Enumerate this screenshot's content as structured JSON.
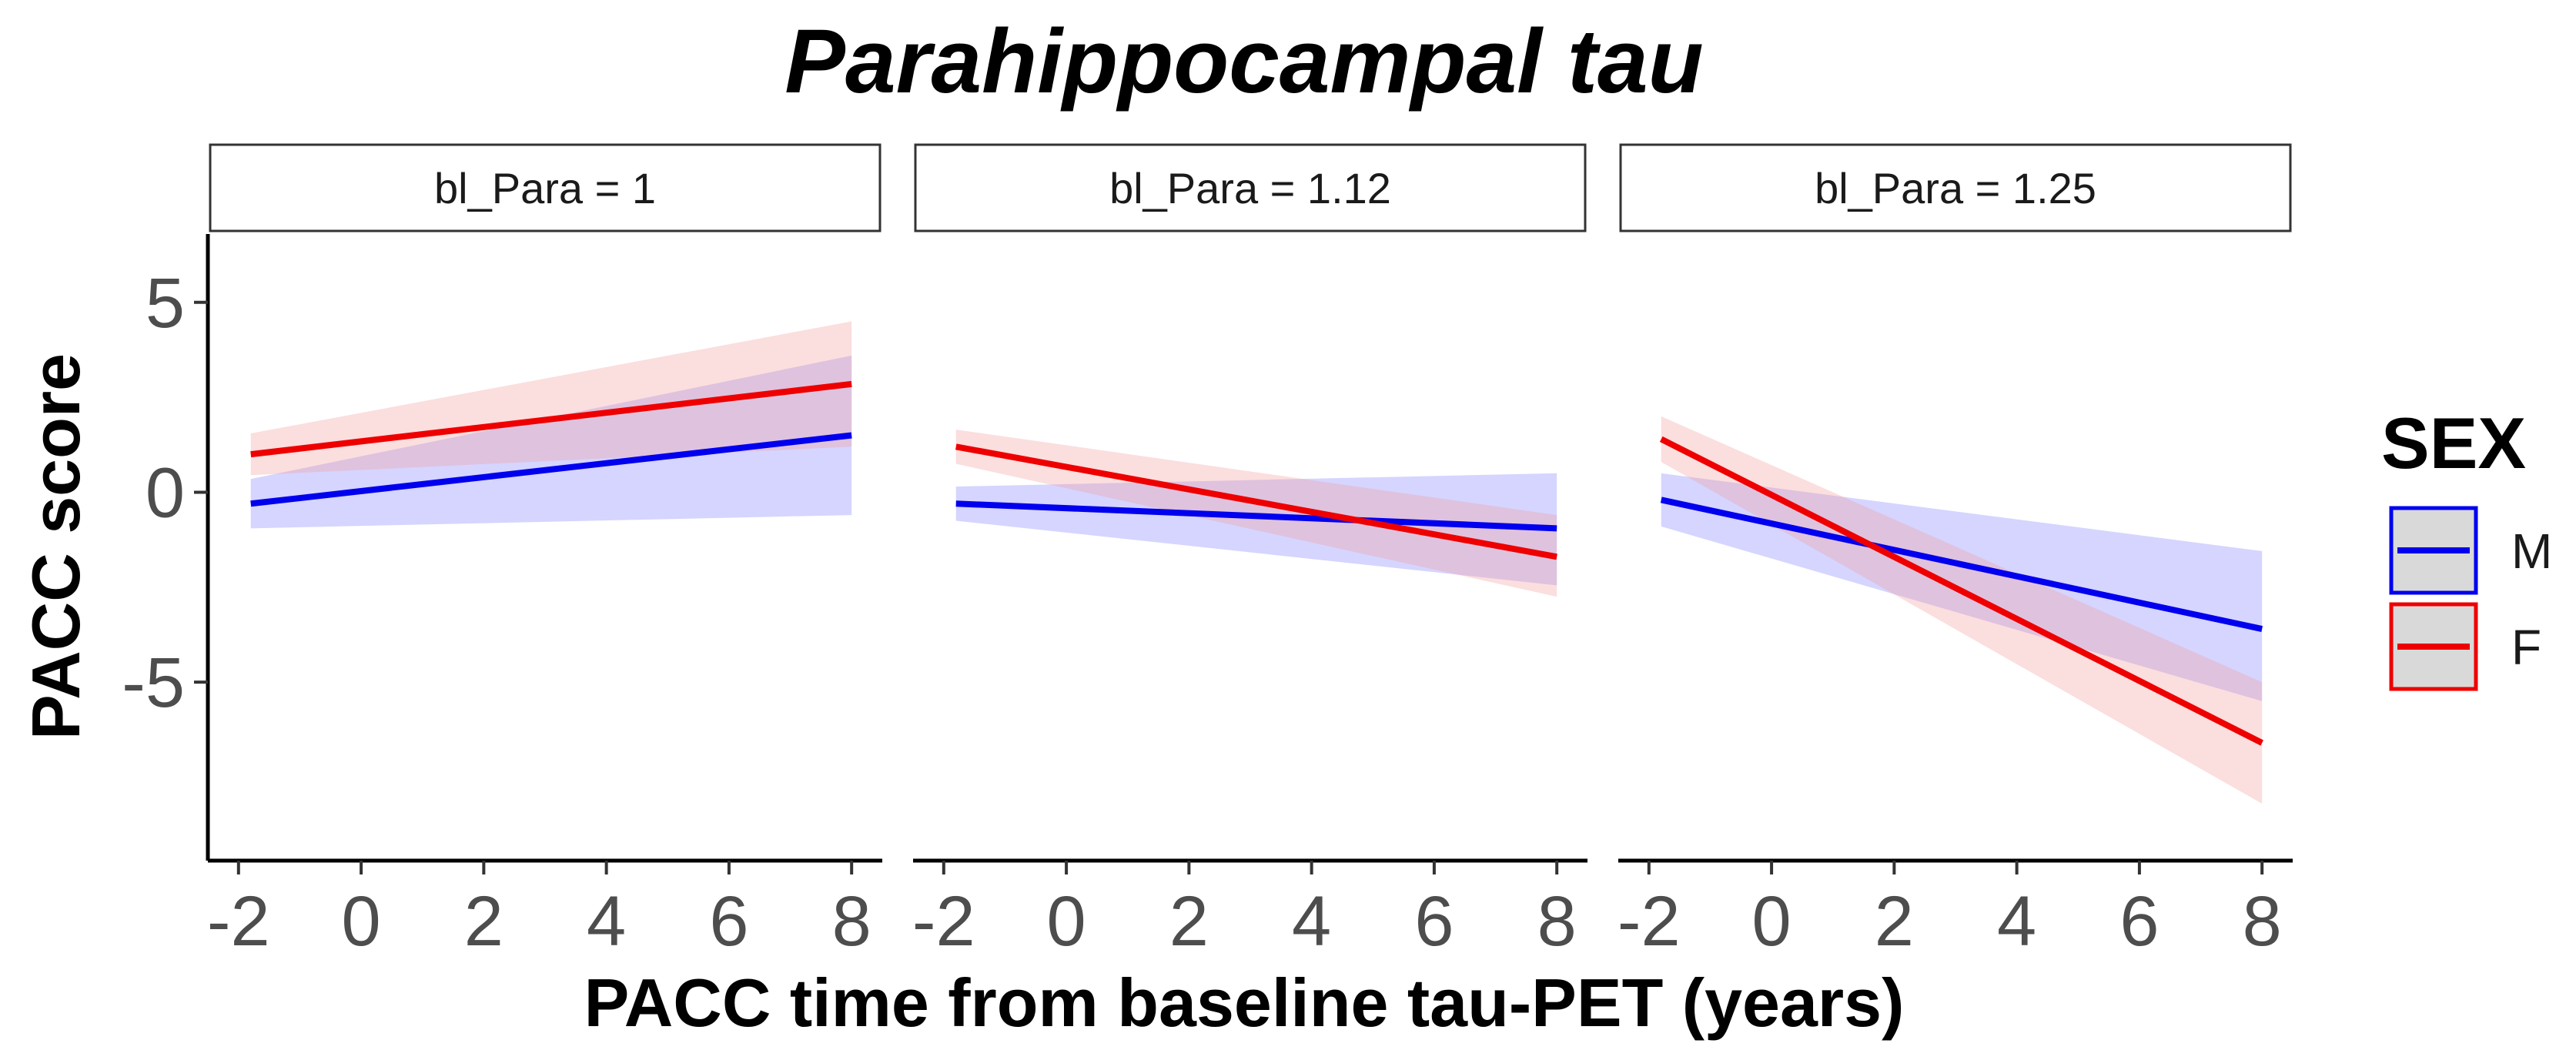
{
  "chart_data": {
    "type": "line",
    "title": "Parahippocampal tau",
    "xlabel": "PACC time from baseline tau-PET (years)",
    "ylabel": "PACC score",
    "xlim": [
      -2.5,
      8.5
    ],
    "ylim": [
      -9.7,
      6.8
    ],
    "x_ticks": [
      -2,
      0,
      2,
      4,
      6,
      8
    ],
    "x_tick_labels": [
      "-2",
      "0",
      "2",
      "4",
      "6",
      "8"
    ],
    "y_ticks": [
      5,
      0,
      -5
    ],
    "y_tick_labels": [
      "5",
      "0",
      "-5"
    ],
    "grid": false,
    "legend": {
      "title": "SEX",
      "position": "right",
      "entries": [
        {
          "label": "M",
          "color": "#0000ee",
          "fill": "#d9d9d9"
        },
        {
          "label": "F",
          "color": "#ee0000",
          "fill": "#d9d9d9"
        }
      ]
    },
    "panels": [
      {
        "strip": "bl_Para = 1",
        "series": [
          {
            "name": "M",
            "color": "#0000ee",
            "ribbon_color": "#8888ff",
            "x": [
              -1.8,
              8
            ],
            "y": [
              -0.3,
              1.5
            ],
            "lower": [
              -0.95,
              -0.6
            ],
            "upper": [
              0.35,
              3.6
            ]
          },
          {
            "name": "F",
            "color": "#ee0000",
            "ribbon_color": "#f4a0a0",
            "x": [
              -1.8,
              8
            ],
            "y": [
              1.0,
              2.85
            ],
            "lower": [
              0.45,
              1.2
            ],
            "upper": [
              1.55,
              4.5
            ]
          }
        ]
      },
      {
        "strip": "bl_Para = 1.12",
        "series": [
          {
            "name": "M",
            "color": "#0000ee",
            "ribbon_color": "#8888ff",
            "x": [
              -1.8,
              8
            ],
            "y": [
              -0.3,
              -0.95
            ],
            "lower": [
              -0.75,
              -2.45
            ],
            "upper": [
              0.15,
              0.5
            ]
          },
          {
            "name": "F",
            "color": "#ee0000",
            "ribbon_color": "#f4a0a0",
            "x": [
              -1.8,
              8
            ],
            "y": [
              1.2,
              -1.7
            ],
            "lower": [
              0.75,
              -2.75
            ],
            "upper": [
              1.65,
              -0.6
            ]
          }
        ]
      },
      {
        "strip": "bl_Para = 1.25",
        "series": [
          {
            "name": "M",
            "color": "#0000ee",
            "ribbon_color": "#8888ff",
            "x": [
              -1.8,
              8
            ],
            "y": [
              -0.2,
              -3.6
            ],
            "lower": [
              -0.9,
              -5.5
            ],
            "upper": [
              0.5,
              -1.55
            ]
          },
          {
            "name": "F",
            "color": "#ee0000",
            "ribbon_color": "#f4a0a0",
            "x": [
              -1.8,
              8
            ],
            "y": [
              1.4,
              -6.6
            ],
            "lower": [
              0.8,
              -8.2
            ],
            "upper": [
              2.0,
              -5.0
            ]
          }
        ]
      }
    ]
  }
}
